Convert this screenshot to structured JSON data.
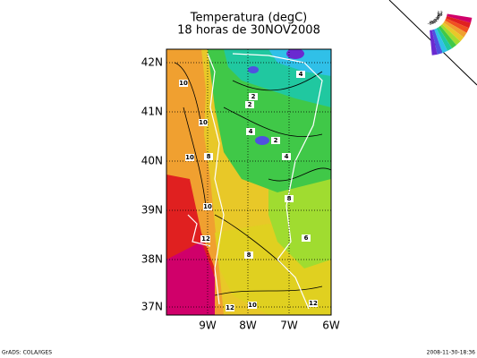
{
  "header": {
    "title": "Temperatura (degC)",
    "subtitle": "18 horas de 30NOV2008"
  },
  "axes": {
    "lat_labels": [
      "42N",
      "41N",
      "40N",
      "39N",
      "38N",
      "37N"
    ],
    "lon_labels": [
      "9W",
      "8W",
      "7W",
      "6W"
    ]
  },
  "contour_labels": [
    "10",
    "10",
    "10",
    "10",
    "8",
    "10",
    "12",
    "8",
    "8",
    "6",
    "4",
    "2",
    "2",
    "4",
    "2",
    "4",
    "12",
    "10",
    "12"
  ],
  "legend": {
    "labels": [
      "12",
      "10",
      "8",
      "6",
      "4",
      "2",
      "0",
      "-2",
      "-4",
      "-6",
      "-8"
    ]
  },
  "footer": {
    "left": "GrADS: COLA/IGES",
    "right": "2008-11-30-18:36"
  }
}
